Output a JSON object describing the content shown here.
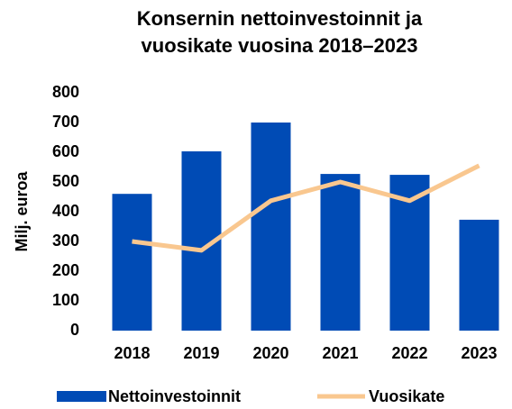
{
  "chart_data": {
    "type": "bar",
    "title": [
      "Konsernin nettoinvestoinnit ja",
      "vuosikate vuosina 2018–2023"
    ],
    "y_label": "Milj. euroa",
    "categories": [
      "2018",
      "2019",
      "2020",
      "2021",
      "2022",
      "2023"
    ],
    "series": [
      {
        "name": "Nettoinvestoinnit",
        "type": "bar",
        "color": "#004bb5",
        "values": [
          460,
          603,
          700,
          527,
          524,
          373
        ]
      },
      {
        "name": "Vuosikate",
        "type": "line",
        "color": "#f9c78f",
        "values": [
          300,
          270,
          437,
          500,
          437,
          555
        ]
      }
    ],
    "ylim": [
      0,
      800
    ],
    "yticks": [
      0,
      100,
      200,
      300,
      400,
      500,
      600,
      700,
      800
    ],
    "grid": false,
    "legend": "bottom"
  }
}
